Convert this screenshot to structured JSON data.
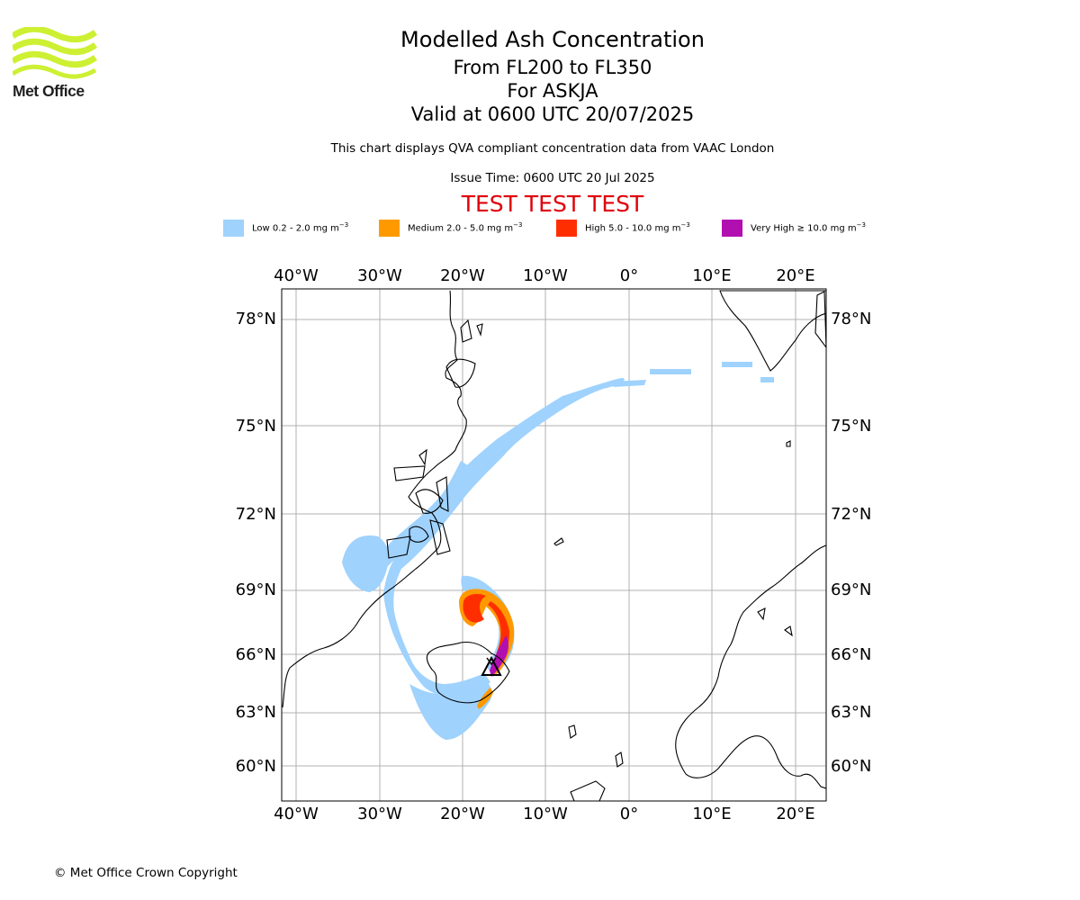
{
  "logo": {
    "text": "Met Office",
    "color": "#cdf033"
  },
  "titles": {
    "line1": "Modelled Ash Concentration",
    "line2": "From FL200 to FL350",
    "line3": "For ASKJA",
    "line4": "Valid at 0600 UTC 20/07/2025"
  },
  "subtitle": "This chart displays QVA compliant concentration data from VAAC London",
  "issue_time": "Issue Time: 0600 UTC 20 Jul 2025",
  "test_banner": "TEST TEST TEST",
  "legend": [
    {
      "label": "Low 0.2 - 2.0 mg m",
      "unit_exp": "−3",
      "color": "#9fd2fd"
    },
    {
      "label": "Medium 2.0 - 5.0 mg m",
      "unit_exp": "−3",
      "color": "#ff9900"
    },
    {
      "label": "High 5.0 - 10.0 mg m",
      "unit_exp": "−3",
      "color": "#ff2e00"
    },
    {
      "label": "Very High ≥ 10.0 mg m",
      "unit_exp": "−3",
      "color": "#b20fb1"
    }
  ],
  "map": {
    "lon_labels": [
      "40°W",
      "30°W",
      "20°W",
      "10°W",
      "0°",
      "10°E",
      "20°E"
    ],
    "lat_labels": [
      "78°N",
      "75°N",
      "72°N",
      "69°N",
      "66°N",
      "63°N",
      "60°N"
    ],
    "volcano": "ASKJA",
    "gridlines": true
  },
  "copyright": "© Met Office Crown Copyright"
}
